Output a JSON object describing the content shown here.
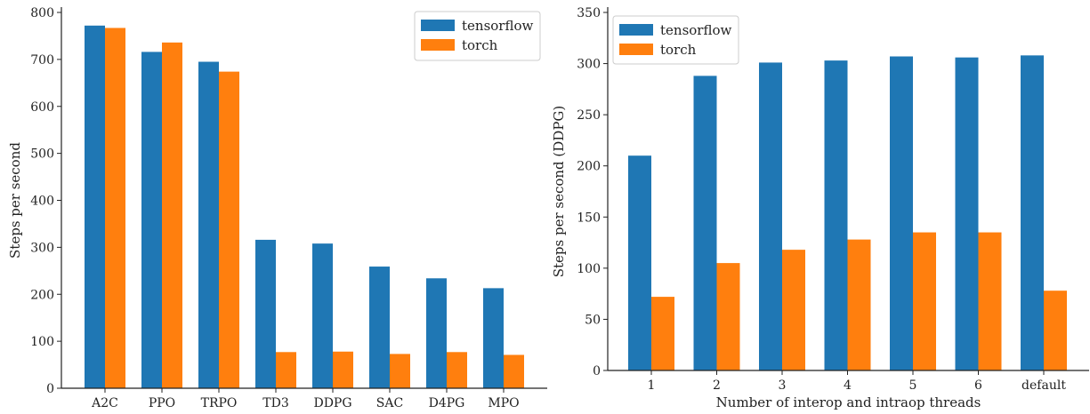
{
  "chart_data": [
    {
      "type": "bar",
      "title": "",
      "xlabel": "",
      "ylabel": "Steps per second",
      "ylim": [
        0,
        800
      ],
      "yticks": [
        0,
        100,
        200,
        300,
        400,
        500,
        600,
        700,
        800
      ],
      "categories": [
        "A2C",
        "PPO",
        "TRPO",
        "TD3",
        "DDPG",
        "SAC",
        "D4PG",
        "MPO"
      ],
      "series": [
        {
          "name": "tensorflow",
          "color": "#1f77b4",
          "values": [
            772,
            716,
            695,
            316,
            308,
            259,
            234,
            213
          ]
        },
        {
          "name": "torch",
          "color": "#ff7f0e",
          "values": [
            767,
            736,
            674,
            77,
            78,
            73,
            77,
            71
          ]
        }
      ],
      "legend": "top-right",
      "grid": false
    },
    {
      "type": "bar",
      "title": "",
      "xlabel": "Number of interop and intraop threads",
      "ylabel": "Steps per second (DDPG)",
      "ylim": [
        0,
        350
      ],
      "yticks": [
        0,
        50,
        100,
        150,
        200,
        250,
        300,
        350
      ],
      "categories": [
        "1",
        "2",
        "3",
        "4",
        "5",
        "6",
        "default"
      ],
      "series": [
        {
          "name": "tensorflow",
          "color": "#1f77b4",
          "values": [
            210,
            288,
            301,
            303,
            307,
            306,
            308
          ]
        },
        {
          "name": "torch",
          "color": "#ff7f0e",
          "values": [
            72,
            105,
            118,
            128,
            135,
            135,
            78
          ]
        }
      ],
      "legend": "top-left",
      "grid": false
    }
  ]
}
